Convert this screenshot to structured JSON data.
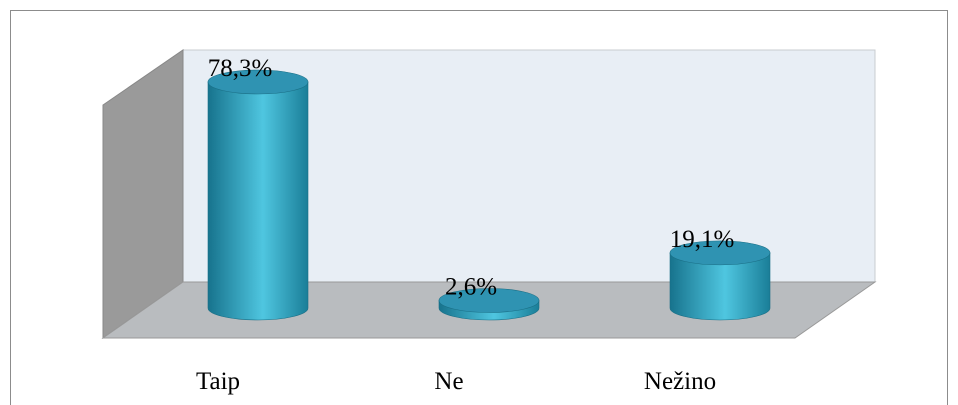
{
  "chart_data": {
    "type": "bar3d",
    "categories": [
      "Taip",
      "Ne",
      "Nežino"
    ],
    "values": [
      78.3,
      2.6,
      19.1
    ],
    "value_labels": [
      "78,3%",
      "2,6%",
      "19,1%"
    ],
    "color": "#3aaecb"
  }
}
